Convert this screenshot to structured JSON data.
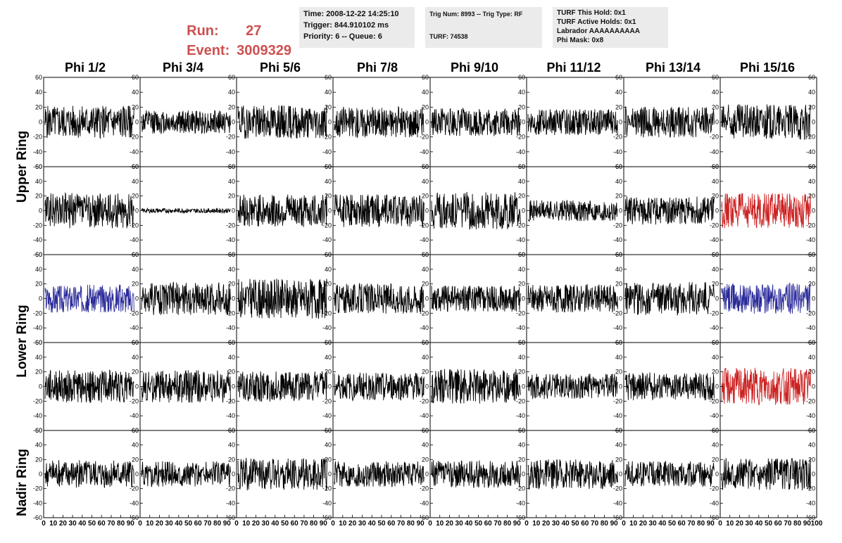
{
  "run": {
    "run_label": "Run:",
    "run_value": "27",
    "event_label": "Event:",
    "event_value": "3009329"
  },
  "info_box_1": [
    "Time: 2008-12-22 14:25:10",
    "Trigger: 844.910102 ms",
    "Priority: 6 -- Queue: 6"
  ],
  "info_box_2": [
    "Trig Num: 8993 -- Trig Type: RF",
    "TURF: 74538"
  ],
  "info_box_3": [
    "TURF This Hold: 0x1",
    "TURF Active Holds: 0x1",
    "Labrador AAAAAAAAAA",
    "Phi Mask: 0x8"
  ],
  "columns": [
    "Phi 1/2",
    "Phi 3/4",
    "Phi 5/6",
    "Phi 7/8",
    "Phi 9/10",
    "Phi 11/12",
    "Phi 13/14",
    "Phi 15/16"
  ],
  "ring_labels": [
    "Upper Ring",
    "Lower Ring",
    "Nadir Ring"
  ],
  "y_ticks": [
    "60",
    "40",
    "20",
    "0",
    "-20",
    "-40",
    "-60"
  ],
  "x_ticks": [
    "0",
    "10",
    "20",
    "30",
    "40",
    "50",
    "60",
    "70",
    "80",
    "90",
    "100"
  ],
  "axis_ranges": {
    "x": [
      0,
      100
    ],
    "y": [
      -60,
      60
    ]
  },
  "colors": {
    "default_trace": "#000000",
    "highlight_red": "#cc2222",
    "highlight_blue": "#2a2a9a",
    "title_red": "#cd5050"
  },
  "panels": [
    {
      "row": 0,
      "col": 0,
      "color": "black",
      "amp": 14
    },
    {
      "row": 0,
      "col": 1,
      "color": "black",
      "amp": 10
    },
    {
      "row": 0,
      "col": 2,
      "color": "black",
      "amp": 14
    },
    {
      "row": 0,
      "col": 3,
      "color": "black",
      "amp": 13
    },
    {
      "row": 0,
      "col": 4,
      "color": "black",
      "amp": 12
    },
    {
      "row": 0,
      "col": 5,
      "color": "black",
      "amp": 11
    },
    {
      "row": 0,
      "col": 6,
      "color": "black",
      "amp": 13
    },
    {
      "row": 0,
      "col": 7,
      "color": "black",
      "amp": 15
    },
    {
      "row": 1,
      "col": 0,
      "color": "black",
      "amp": 15
    },
    {
      "row": 1,
      "col": 1,
      "color": "black",
      "amp": 2
    },
    {
      "row": 1,
      "col": 2,
      "color": "black",
      "amp": 14
    },
    {
      "row": 1,
      "col": 3,
      "color": "black",
      "amp": 14
    },
    {
      "row": 1,
      "col": 4,
      "color": "black",
      "amp": 16
    },
    {
      "row": 1,
      "col": 5,
      "color": "black",
      "amp": 9
    },
    {
      "row": 1,
      "col": 6,
      "color": "black",
      "amp": 12
    },
    {
      "row": 1,
      "col": 7,
      "color": "red",
      "amp": 15
    },
    {
      "row": 2,
      "col": 0,
      "color": "blue",
      "amp": 12
    },
    {
      "row": 2,
      "col": 1,
      "color": "black",
      "amp": 14
    },
    {
      "row": 2,
      "col": 2,
      "color": "black",
      "amp": 17
    },
    {
      "row": 2,
      "col": 3,
      "color": "black",
      "amp": 13
    },
    {
      "row": 2,
      "col": 4,
      "color": "black",
      "amp": 11
    },
    {
      "row": 2,
      "col": 5,
      "color": "black",
      "amp": 12
    },
    {
      "row": 2,
      "col": 6,
      "color": "black",
      "amp": 14
    },
    {
      "row": 2,
      "col": 7,
      "color": "blue",
      "amp": 13
    },
    {
      "row": 3,
      "col": 0,
      "color": "black",
      "amp": 14
    },
    {
      "row": 3,
      "col": 1,
      "color": "black",
      "amp": 14
    },
    {
      "row": 3,
      "col": 2,
      "color": "black",
      "amp": 13
    },
    {
      "row": 3,
      "col": 3,
      "color": "black",
      "amp": 12
    },
    {
      "row": 3,
      "col": 4,
      "color": "black",
      "amp": 15
    },
    {
      "row": 3,
      "col": 5,
      "color": "black",
      "amp": 11
    },
    {
      "row": 3,
      "col": 6,
      "color": "black",
      "amp": 12
    },
    {
      "row": 3,
      "col": 7,
      "color": "red",
      "amp": 16
    },
    {
      "row": 4,
      "col": 0,
      "color": "black",
      "amp": 12
    },
    {
      "row": 4,
      "col": 1,
      "color": "black",
      "amp": 11
    },
    {
      "row": 4,
      "col": 2,
      "color": "black",
      "amp": 14
    },
    {
      "row": 4,
      "col": 3,
      "color": "black",
      "amp": 11
    },
    {
      "row": 4,
      "col": 4,
      "color": "black",
      "amp": 12
    },
    {
      "row": 4,
      "col": 5,
      "color": "black",
      "amp": 13
    },
    {
      "row": 4,
      "col": 6,
      "color": "black",
      "amp": 11
    },
    {
      "row": 4,
      "col": 7,
      "color": "black",
      "amp": 14
    }
  ]
}
